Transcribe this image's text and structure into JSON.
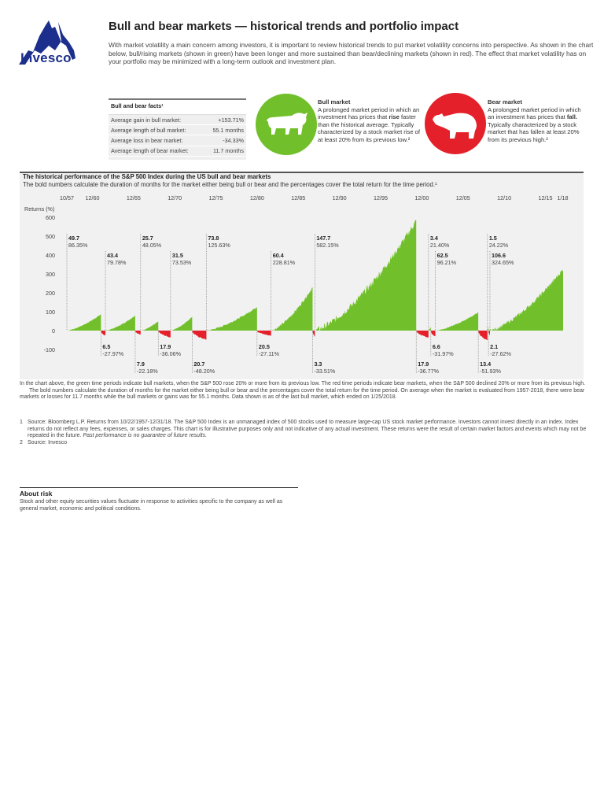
{
  "brand": {
    "name": "Invesco",
    "color": "#1c2f8c"
  },
  "title": "Bull and bear markets — historical trends and portfolio impact",
  "intro": "With market volatility a main concern among investors, it is important to review historical trends to put market volatility concerns into perspective. As shown in the chart below, bull/rising markets (shown in green) have been longer and more sustained than bear/declining markets (shown in red). The effect that market volatility has on your portfolio may be minimized with a long-term outlook and investment plan.",
  "facts": {
    "heading": "Bull and bear facts¹",
    "rows": [
      {
        "label": "Average gain in bull market:",
        "value": "+153.71%"
      },
      {
        "label": "Average length of bull market:",
        "value": "55.1 months"
      },
      {
        "label": "Average loss in bear market:",
        "value": "-34.33%"
      },
      {
        "label": "Average length of bear market:",
        "value": "11.7 months"
      }
    ]
  },
  "bull": {
    "heading": "Bull market",
    "pre": "A prolonged market period in which an investment has prices that ",
    "bold": "rise",
    "post": " faster than the historical average. Typically characterized by a stock market rise of at least 20% from its previous low.²",
    "color": "#71c02b"
  },
  "bear": {
    "heading": "Bear market",
    "pre": "A prolonged market period in which an investment has prices that ",
    "bold": "fall.",
    "post": " Typically characterized by a stock market that has fallen at least 20% from its previous high.²",
    "color": "#e4202a"
  },
  "chart_data": {
    "type": "area",
    "title": "The historical performance of the S&P 500 Index during the US bull and bear markets",
    "subtitle": "The bold numbers calculate the duration of months for the market either being bull or bear and the percentages cover the total return for the time period.¹",
    "ylabel": "Returns (%)",
    "ylim": [
      -100,
      600
    ],
    "yticks": [
      "600",
      "500",
      "400",
      "300",
      "200",
      "100",
      "0",
      "-100"
    ],
    "xticks": [
      {
        "label": "10/57",
        "year": 1957.8
      },
      {
        "label": "12/60",
        "year": 1960.9
      },
      {
        "label": "12/65",
        "year": 1965.9
      },
      {
        "label": "12/70",
        "year": 1970.9
      },
      {
        "label": "12/75",
        "year": 1975.9
      },
      {
        "label": "12/80",
        "year": 1980.9
      },
      {
        "label": "12/85",
        "year": 1985.9
      },
      {
        "label": "12/90",
        "year": 1990.9
      },
      {
        "label": "12/95",
        "year": 1995.9
      },
      {
        "label": "12/00",
        "year": 2000.9
      },
      {
        "label": "12/05",
        "year": 2005.9
      },
      {
        "label": "12/10",
        "year": 2010.9
      },
      {
        "label": "12/15",
        "year": 2015.9
      },
      {
        "label": "1/18",
        "year": 2018.0
      }
    ],
    "start_year": 1957.8,
    "periods": [
      {
        "type": "bull",
        "months": "49.7",
        "return": "86.35%",
        "value": 86.35
      },
      {
        "type": "bear",
        "months": "6.5",
        "return": "-27.97%",
        "value": -27.97
      },
      {
        "type": "bull",
        "months": "43.4",
        "return": "79.78%",
        "value": 79.78
      },
      {
        "type": "bear",
        "months": "7.9",
        "return": "-22.18%",
        "value": -22.18
      },
      {
        "type": "bull",
        "months": "25.7",
        "return": "48.05%",
        "value": 48.05
      },
      {
        "type": "bear",
        "months": "17.9",
        "return": "-36.06%",
        "value": -36.06
      },
      {
        "type": "bull",
        "months": "31.5",
        "return": "73.53%",
        "value": 73.53
      },
      {
        "type": "bear",
        "months": "20.7",
        "return": "-48.20%",
        "value": -48.2
      },
      {
        "type": "bull",
        "months": "73.8",
        "return": "125.63%",
        "value": 125.63
      },
      {
        "type": "bear",
        "months": "20.5",
        "return": "-27.11%",
        "value": -27.11
      },
      {
        "type": "bull",
        "months": "60.4",
        "return": "228.81%",
        "value": 228.81
      },
      {
        "type": "bear",
        "months": "3.3",
        "return": "-33.51%",
        "value": -33.51
      },
      {
        "type": "bull",
        "months": "147.7",
        "return": "582.15%",
        "value": 582.15
      },
      {
        "type": "bear",
        "months": "17.9",
        "return": "-36.77%",
        "value": -36.77
      },
      {
        "type": "bull",
        "months": "3.4",
        "return": "21.40%",
        "value": 21.4
      },
      {
        "type": "bear",
        "months": "6.6",
        "return": "-31.97%",
        "value": -31.97
      },
      {
        "type": "bull",
        "months": "62.5",
        "return": "96.21%",
        "value": 96.21
      },
      {
        "type": "bear",
        "months": "13.4",
        "return": "-51.93%",
        "value": -51.93
      },
      {
        "type": "bull",
        "months": "1.5",
        "return": "24.22%",
        "value": 24.22
      },
      {
        "type": "bear",
        "months": "2.1",
        "return": "-27.62%",
        "value": -27.62
      },
      {
        "type": "bull",
        "months": "106.6",
        "return": "324.65%",
        "value": 324.65
      }
    ],
    "colors": {
      "bull": "#71c02b",
      "bear": "#e4202a"
    }
  },
  "notes": {
    "p1": "In the chart above, the green time periods indicate bull markets, when the S&P 500 rose 20% or more from its previous low. The red time periods indicate bear markets, when the S&P 500 declined 20% or more from its previous high.",
    "p2": "The bold numbers calculate the duration of months for the market either being bull or bear and the percentages cover the total return for the time period. On average when the market is evaluated from 1957-2018, there were bear markets or losses for 11.7 months while the bull markets or gains was for 55.1 months. Data shown is as of the last bull market, which ended on 1/25/2018."
  },
  "footnotes": [
    {
      "n": "1",
      "text": "Source: Bloomberg L.P. Returns from 10/22/1957-12/31/18. The S&P 500 Index is an unmanaged index of 500 stocks used to measure large-cap US stock market performance. Investors cannot invest directly in an index. Index returns do not reflect any fees, expenses, or sales charges. This chart is for illustrative purposes only and not indicative of any actual investment. These returns were the result of certain market factors and events which may not be repeated in the future. ",
      "italic": "Past performance is no guarantee of future results."
    },
    {
      "n": "2",
      "text": "Source: Invesco",
      "italic": ""
    }
  ],
  "risk": {
    "heading": "About risk",
    "text": "Stock and other equity securities values fluctuate in response to activities specific to the company as well as general market, economic and political conditions."
  }
}
